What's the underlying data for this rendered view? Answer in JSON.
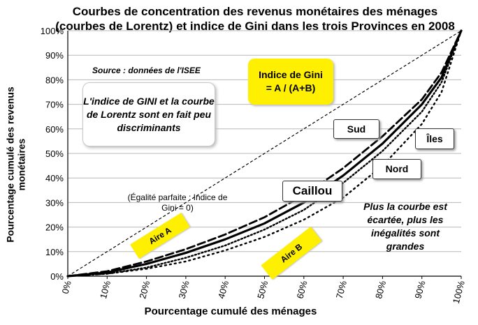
{
  "chart_data": {
    "type": "line",
    "title": "Courbes de concentration des revenus monétaires des ménages (courbes de Lorentz) et indice de Gini dans les trois Provinces en 2008",
    "xlabel": "Pourcentage cumulé des ménages",
    "ylabel": "Pourcentage cumulé des revenus monétaires",
    "xlim": [
      0,
      100
    ],
    "ylim": [
      0,
      100
    ],
    "x_ticks": [
      "0%",
      "10%",
      "20%",
      "30%",
      "40%",
      "50%",
      "60%",
      "70%",
      "80%",
      "90%",
      "100%"
    ],
    "y_ticks": [
      "0%",
      "10%",
      "20%",
      "30%",
      "40%",
      "50%",
      "60%",
      "70%",
      "80%",
      "90%",
      "100%"
    ],
    "grid": true,
    "x": [
      0,
      10,
      20,
      30,
      40,
      50,
      60,
      70,
      80,
      90,
      95,
      100
    ],
    "series": [
      {
        "name": "Sud",
        "style": "dashed",
        "values": [
          0,
          2,
          6,
          11,
          17,
          24,
          33,
          44,
          57,
          72,
          83,
          100
        ]
      },
      {
        "name": "Caillou",
        "style": "solid",
        "values": [
          0,
          1.5,
          5,
          9.5,
          15,
          21.5,
          30,
          41,
          54,
          70,
          81,
          100
        ]
      },
      {
        "name": "Nord",
        "style": "dense-dotted",
        "values": [
          0,
          1,
          3.5,
          7.5,
          12.5,
          19,
          27,
          38,
          51,
          67,
          79,
          100
        ]
      },
      {
        "name": "Îles",
        "style": "sparse-dotted",
        "values": [
          0,
          1,
          3,
          6,
          10.5,
          16,
          23,
          32,
          45,
          62,
          75,
          100
        ]
      }
    ],
    "equality_line": {
      "x": [
        0,
        100
      ],
      "y": [
        0,
        100
      ],
      "style": "dashed-thin"
    },
    "extra_dashed_line": {
      "x": [
        0,
        90,
        100
      ],
      "y": [
        0,
        90,
        100
      ],
      "style": "dashed-thin"
    }
  },
  "annotations": {
    "source": "Source : données de l'ISEE",
    "note": "L'indice de GINI et la courbe de Lorentz sont en fait peu discriminants",
    "gini_title": "Indice de Gini",
    "gini_formula": "= A / (A+B)",
    "equality": "(Égalité parfaite : Indice de Gini = 0)",
    "spread": "Plus la courbe est écartée, plus les inégalités sont grandes",
    "aire_a": "Aire A",
    "aire_b": "Aire B",
    "label_sud": "Sud",
    "label_caillou": "Caillou",
    "label_nord": "Nord",
    "label_iles": "Îles"
  }
}
